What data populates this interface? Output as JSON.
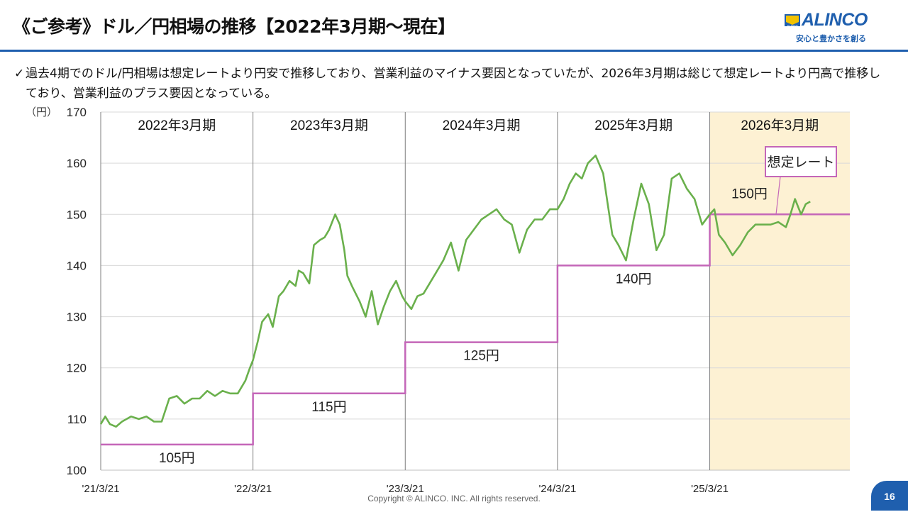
{
  "header": {
    "title": "《ご参考》ドル／円相場の推移【2022年3月期～現在】",
    "logo_brand": "ALINCO",
    "logo_mark_text": "ALINCO",
    "logo_tagline": "安心と豊かさを創る"
  },
  "description": {
    "check": "✓",
    "text": "過去4期でのドル/円相場は想定レートより円安で推移しており、営業利益のマイナス要因となっていたが、2026年3月期は総じて想定レートより円高で推移しており、営業利益のプラス要因となっている。"
  },
  "chart_data": {
    "type": "line",
    "title": "ドル／円相場の推移",
    "ylabel": "（円）",
    "ylim": [
      100,
      170
    ],
    "yticks": [
      "100",
      "110",
      "120",
      "130",
      "140",
      "150",
      "160",
      "170"
    ],
    "xlim": [
      0,
      4.92
    ],
    "xticks": [
      {
        "label": "'21/3/21",
        "x": 0
      },
      {
        "label": "'22/3/21",
        "x": 1
      },
      {
        "label": "'23/3/21",
        "x": 2
      },
      {
        "label": "'24/3/21",
        "x": 3
      },
      {
        "label": "'25/3/21",
        "x": 4
      }
    ],
    "fiscal_periods": [
      {
        "label": "2022年3月期",
        "from": 0,
        "to": 1
      },
      {
        "label": "2023年3月期",
        "from": 1,
        "to": 2
      },
      {
        "label": "2024年3月期",
        "from": 2,
        "to": 3
      },
      {
        "label": "2025年3月期",
        "from": 3,
        "to": 4
      },
      {
        "label": "2026年3月期",
        "from": 4,
        "to": 4.92,
        "highlight": true
      }
    ],
    "assumed_rate": {
      "name": "想定レート",
      "steps": [
        {
          "from": 0,
          "to": 1,
          "value": 105,
          "label": "105円"
        },
        {
          "from": 1,
          "to": 2,
          "value": 115,
          "label": "115円"
        },
        {
          "from": 2,
          "to": 3,
          "value": 125,
          "label": "125円"
        },
        {
          "from": 3,
          "to": 4,
          "value": 140,
          "label": "140円"
        },
        {
          "from": 4,
          "to": 4.92,
          "value": 150,
          "label": "150円"
        }
      ],
      "callout": "想定レート"
    },
    "series": [
      {
        "name": "ドル／円",
        "x": [
          0,
          0.03,
          0.06,
          0.1,
          0.14,
          0.2,
          0.25,
          0.3,
          0.35,
          0.4,
          0.45,
          0.5,
          0.55,
          0.6,
          0.65,
          0.7,
          0.75,
          0.8,
          0.85,
          0.9,
          0.95,
          0.98,
          1.0,
          1.03,
          1.06,
          1.1,
          1.13,
          1.17,
          1.2,
          1.24,
          1.28,
          1.3,
          1.33,
          1.37,
          1.4,
          1.44,
          1.47,
          1.5,
          1.54,
          1.57,
          1.6,
          1.62,
          1.65,
          1.7,
          1.74,
          1.78,
          1.82,
          1.86,
          1.9,
          1.94,
          1.98,
          2.0,
          2.04,
          2.08,
          2.12,
          2.16,
          2.2,
          2.25,
          2.3,
          2.35,
          2.4,
          2.45,
          2.5,
          2.55,
          2.6,
          2.65,
          2.7,
          2.75,
          2.8,
          2.85,
          2.9,
          2.95,
          3.0,
          3.04,
          3.08,
          3.12,
          3.16,
          3.2,
          3.25,
          3.3,
          3.33,
          3.36,
          3.4,
          3.45,
          3.5,
          3.55,
          3.6,
          3.65,
          3.7,
          3.75,
          3.8,
          3.85,
          3.9,
          3.95,
          4.0,
          4.03,
          4.06,
          4.1,
          4.15,
          4.2,
          4.25,
          4.3,
          4.35,
          4.4,
          4.45,
          4.5,
          4.53,
          4.56,
          4.6,
          4.63,
          4.66
        ],
        "values": [
          109,
          110.5,
          109,
          108.5,
          109.5,
          110.5,
          110,
          110.5,
          109.5,
          109.5,
          114,
          114.5,
          113,
          114,
          114,
          115.5,
          114.5,
          115.5,
          115,
          115,
          117.5,
          120,
          121.5,
          125,
          129,
          130.5,
          128,
          134,
          135,
          137,
          136,
          139,
          138.5,
          136.5,
          144,
          145,
          145.5,
          147,
          150,
          148,
          143,
          138,
          136,
          133,
          130,
          135,
          128.5,
          132,
          135,
          137,
          134,
          133,
          131.5,
          134,
          134.5,
          136.5,
          138.5,
          141,
          144.5,
          139,
          145,
          147,
          149,
          150,
          151,
          149,
          148,
          142.5,
          147,
          149,
          149,
          151,
          151,
          153,
          156,
          158,
          157,
          160,
          161.5,
          158,
          152,
          146,
          144,
          141,
          149,
          156,
          152,
          143,
          146,
          157,
          158,
          155,
          153,
          148,
          150,
          151,
          146,
          144.5,
          142,
          144,
          146.5,
          148,
          148,
          148,
          148.5,
          147.5,
          150,
          153,
          150,
          152,
          152.5
        ]
      }
    ]
  },
  "footer": {
    "copyright": "Copyright © ALINCO. INC. All rights reserved.",
    "page_number": "16"
  },
  "colors": {
    "brand": "#1f5fae",
    "line": "#6ab04c",
    "assumed": "#c466b8",
    "highlight": "#fdf1d3",
    "grid": "#d9d9d9",
    "divider": "#7f7f7f"
  }
}
